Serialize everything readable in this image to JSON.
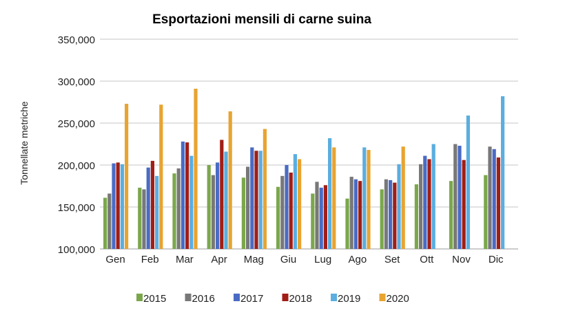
{
  "chart_data": {
    "type": "bar",
    "title": "Esportazioni mensili di carne suina",
    "xlabel": "",
    "ylabel": "Tonnellate metriche",
    "ylim": [
      100000,
      350000
    ],
    "yticks": [
      "100,000",
      "150,000",
      "200,000",
      "250,000",
      "300,000",
      "350,000"
    ],
    "ytick_values": [
      100000,
      150000,
      200000,
      250000,
      300000,
      350000
    ],
    "grid": true,
    "legend": "bottom",
    "categories": [
      "Gen",
      "Feb",
      "Mar",
      "Apr",
      "Mag",
      "Giu",
      "Lug",
      "Ago",
      "Set",
      "Ott",
      "Nov",
      "Dic"
    ],
    "series": [
      {
        "name": "2015",
        "color": "#7ba74c",
        "values": [
          161000,
          173000,
          190000,
          200000,
          185000,
          174000,
          166000,
          160000,
          171000,
          177000,
          181000,
          188000
        ]
      },
      {
        "name": "2016",
        "color": "#787878",
        "values": [
          166000,
          171000,
          196000,
          188000,
          198000,
          187000,
          180000,
          186000,
          183000,
          201000,
          225000,
          222000
        ]
      },
      {
        "name": "2017",
        "color": "#4a6bc4",
        "values": [
          202000,
          197000,
          228000,
          203000,
          221000,
          200000,
          173000,
          183000,
          182000,
          211000,
          223000,
          219000
        ]
      },
      {
        "name": "2018",
        "color": "#a01e16",
        "values": [
          203000,
          205000,
          227000,
          230000,
          217000,
          191000,
          176000,
          181000,
          179000,
          207000,
          206000,
          209000
        ]
      },
      {
        "name": "2019",
        "color": "#5aaee0",
        "values": [
          201000,
          187000,
          211000,
          216000,
          217000,
          213000,
          232000,
          221000,
          201000,
          225000,
          259000,
          282000
        ]
      },
      {
        "name": "2020",
        "color": "#e8a431",
        "values": [
          273000,
          272000,
          291000,
          264000,
          243000,
          207000,
          221000,
          218000,
          222000,
          null,
          null,
          null
        ]
      }
    ]
  }
}
